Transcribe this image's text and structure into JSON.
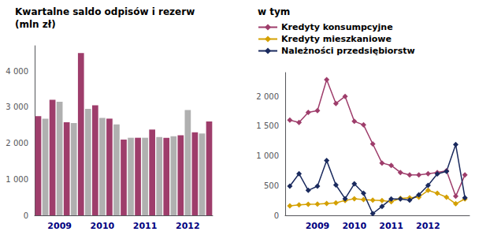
{
  "chart_data": [
    {
      "type": "bar",
      "title": "Kwartalne saldo odpisów i rezerw",
      "subtitle": "(mln zł)",
      "categories": [
        null,
        null,
        null,
        "2009",
        null,
        null,
        null,
        null,
        null,
        "2010",
        null,
        null,
        null,
        null,
        null,
        "2011",
        null,
        null,
        null,
        null,
        null,
        "2012",
        null,
        null,
        null
      ],
      "values": [
        2750,
        2680,
        3200,
        3150,
        2580,
        2560,
        4500,
        2950,
        3050,
        2700,
        2680,
        2520,
        2100,
        2150,
        2150,
        2150,
        2380,
        2170,
        2150,
        2190,
        2220,
        2920,
        2300,
        2270,
        2600
      ],
      "colors": [
        "#9e3d6b",
        "#b0b0b0",
        "#9e3d6b",
        "#b0b0b0",
        "#9e3d6b",
        "#b0b0b0",
        "#9e3d6b",
        "#b0b0b0",
        "#9e3d6b",
        "#b0b0b0",
        "#9e3d6b",
        "#b0b0b0",
        "#9e3d6b",
        "#b0b0b0",
        "#9e3d6b",
        "#b0b0b0",
        "#9e3d6b",
        "#b0b0b0",
        "#9e3d6b",
        "#b0b0b0",
        "#9e3d6b",
        "#b0b0b0",
        "#9e3d6b",
        "#b0b0b0",
        "#9e3d6b"
      ],
      "ylim": [
        0,
        4700
      ],
      "yticks": [
        0,
        {
          "value": 1000,
          "label": "1 000"
        },
        {
          "value": 2000,
          "label": "2 000"
        },
        {
          "value": 3000,
          "label": "3 000"
        },
        {
          "value": 4000,
          "label": "4 000"
        }
      ],
      "grid": false
    },
    {
      "type": "line",
      "title": "w tym",
      "categories": [
        null,
        null,
        null,
        "2009",
        null,
        null,
        null,
        "2010",
        null,
        null,
        null,
        "2011",
        null,
        null,
        null,
        "2012",
        null,
        null,
        null,
        null
      ],
      "series": [
        {
          "name": "Kredyty konsumpcyjne",
          "color": "#9e3d6b",
          "values": [
            1600,
            1560,
            1730,
            1760,
            2280,
            1880,
            2000,
            1580,
            1520,
            1200,
            880,
            840,
            720,
            680,
            680,
            700,
            720,
            750,
            320,
            680
          ]
        },
        {
          "name": "Kredyty mieszkaniowe",
          "color": "#d4a000",
          "values": [
            160,
            175,
            185,
            190,
            200,
            210,
            250,
            280,
            265,
            255,
            250,
            230,
            285,
            295,
            305,
            420,
            370,
            305,
            195,
            275
          ]
        },
        {
          "name": "Należności przedsiębiorstw",
          "color": "#1a2a5e",
          "values": [
            490,
            700,
            420,
            490,
            920,
            510,
            280,
            530,
            370,
            30,
            150,
            275,
            275,
            255,
            345,
            505,
            695,
            740,
            1190,
            295
          ]
        }
      ],
      "marker": "diamond",
      "ylim": [
        0,
        2400
      ],
      "yticks": [
        0,
        500,
        {
          "value": 1000,
          "label": "1 000"
        },
        {
          "value": 1500,
          "label": "1 500"
        },
        {
          "value": 2000,
          "label": "2 000"
        }
      ],
      "grid": false,
      "legend": "upper left"
    }
  ]
}
